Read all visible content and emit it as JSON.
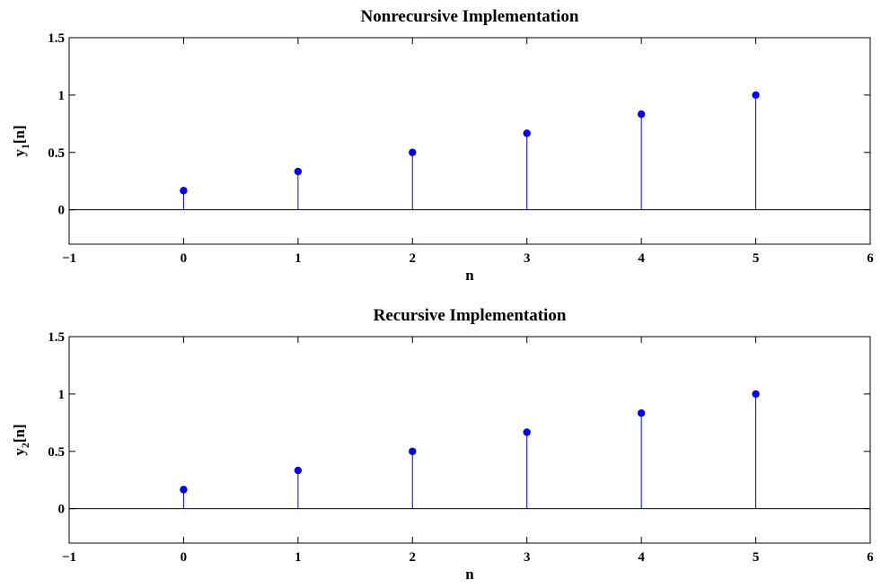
{
  "chart_data": [
    {
      "type": "stem",
      "title": "Nonrecursive Implementation",
      "xlabel": "n",
      "ylabel_base": "y",
      "ylabel_sub": "1",
      "ylabel_tail": "[n]",
      "xlim": [
        -1,
        6
      ],
      "ylim": [
        -0.3,
        1.5
      ],
      "xticks": [
        -1,
        0,
        1,
        2,
        3,
        4,
        5,
        6
      ],
      "xtick_labels": [
        "−1",
        "0",
        "1",
        "2",
        "3",
        "4",
        "5",
        "6"
      ],
      "yticks": [
        0,
        0.5,
        1,
        1.5
      ],
      "ytick_labels": [
        "0",
        "0.5",
        "1",
        "1.5"
      ],
      "baseline": 0,
      "grid": false,
      "color": "#0000ff",
      "x": [
        0,
        1,
        2,
        3,
        4,
        5
      ],
      "y": [
        0.1667,
        0.3333,
        0.5,
        0.6667,
        0.8333,
        1.0
      ]
    },
    {
      "type": "stem",
      "title": "Recursive Implementation",
      "xlabel": "n",
      "ylabel_base": "y",
      "ylabel_sub": "2",
      "ylabel_tail": "[n]",
      "xlim": [
        -1,
        6
      ],
      "ylim": [
        -0.3,
        1.5
      ],
      "xticks": [
        -1,
        0,
        1,
        2,
        3,
        4,
        5,
        6
      ],
      "xtick_labels": [
        "−1",
        "0",
        "1",
        "2",
        "3",
        "4",
        "5",
        "6"
      ],
      "yticks": [
        0,
        0.5,
        1,
        1.5
      ],
      "ytick_labels": [
        "0",
        "0.5",
        "1",
        "1.5"
      ],
      "baseline": 0,
      "grid": false,
      "color": "#0000ff",
      "x": [
        0,
        1,
        2,
        3,
        4,
        5
      ],
      "y": [
        0.1667,
        0.3333,
        0.5,
        0.6667,
        0.8333,
        1.0
      ]
    }
  ]
}
